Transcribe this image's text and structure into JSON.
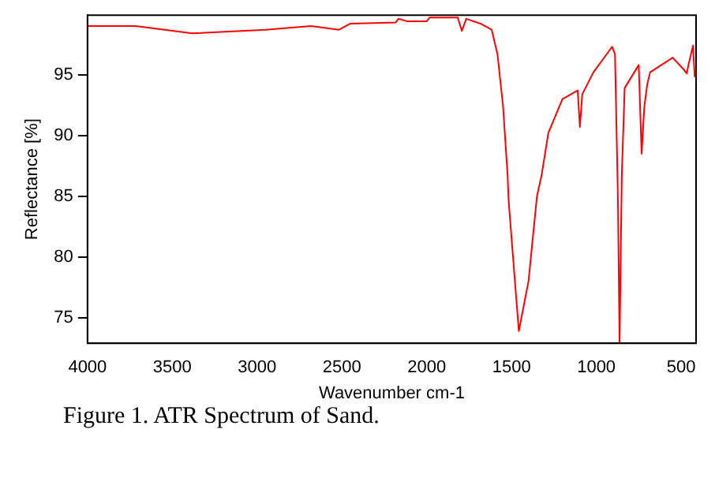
{
  "chart_data": {
    "type": "line",
    "xlabel": "Wavenumber cm-1",
    "ylabel": "Reflectance [%]",
    "annotations": [
      "Figure 1.  ATR Spectrum of Sand."
    ],
    "xlim": [
      4000,
      412
    ],
    "xticks": [
      4000,
      3500,
      3000,
      2500,
      2000,
      1500,
      1000,
      500
    ],
    "ylim": [
      72.9,
      99.9
    ],
    "yticks": [
      75,
      80,
      85,
      90,
      95
    ],
    "grid": false,
    "legend": false,
    "marker": "none",
    "line_style": "solid",
    "series": [
      {
        "color": "#ff0000",
        "x": [
          4000,
          3717,
          3383,
          2950,
          2683,
          2517,
          2450,
          2183,
          2167,
          2117,
          2000,
          1983,
          1817,
          1793,
          1767,
          1683,
          1617,
          1583,
          1550,
          1523,
          1517,
          1457,
          1400,
          1350,
          1323,
          1283,
          1200,
          1110,
          1097,
          1083,
          1017,
          907,
          890,
          873,
          863,
          850,
          833,
          750,
          733,
          717,
          700,
          683,
          550,
          483,
          467,
          457,
          430,
          420
        ],
        "values": [
          99.0,
          99.0,
          98.4,
          98.7,
          99.0,
          98.7,
          99.2,
          99.3,
          99.6,
          99.4,
          99.4,
          99.7,
          99.7,
          98.6,
          99.6,
          99.2,
          98.7,
          96.7,
          92.4,
          86.7,
          84.6,
          73.9,
          78.0,
          85.0,
          86.7,
          90.2,
          93.0,
          93.7,
          90.7,
          93.4,
          95.2,
          97.3,
          96.7,
          85.0,
          72.9,
          86.7,
          93.9,
          95.8,
          88.5,
          92.4,
          94.2,
          95.2,
          96.4,
          95.4,
          95.1,
          95.8,
          97.4,
          94.8
        ]
      }
    ]
  }
}
